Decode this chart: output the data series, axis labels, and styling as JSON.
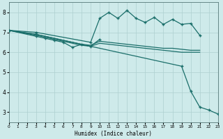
{
  "xlabel": "Humidex (Indice chaleur)",
  "bg_color": "#ceeaea",
  "grid_color": "#aed0d0",
  "line_color": "#1a6e6a",
  "xlim": [
    0,
    23
  ],
  "ylim": [
    2.5,
    8.5
  ],
  "yticks": [
    3,
    4,
    5,
    6,
    7,
    8
  ],
  "xticks": [
    0,
    1,
    2,
    3,
    4,
    5,
    6,
    7,
    8,
    9,
    10,
    11,
    12,
    13,
    14,
    15,
    16,
    17,
    18,
    19,
    20,
    21,
    22,
    23
  ],
  "line_wavy": {
    "x": [
      0,
      3,
      9,
      10,
      11,
      12,
      13,
      14,
      15,
      16,
      17,
      18,
      19,
      20,
      21
    ],
    "y": [
      7.1,
      7.0,
      6.5,
      7.7,
      8.0,
      7.7,
      8.1,
      7.7,
      7.5,
      7.75,
      7.4,
      7.65,
      7.4,
      7.45,
      6.85
    ]
  },
  "line_long_down": {
    "x": [
      0,
      3,
      19,
      20,
      21,
      22,
      23
    ],
    "y": [
      7.1,
      6.9,
      5.3,
      4.05,
      3.25,
      3.1,
      2.9
    ]
  },
  "line_medium1": {
    "x": [
      0,
      3,
      4,
      5,
      6,
      7,
      8,
      9,
      10,
      11,
      12,
      13,
      14,
      15,
      16,
      17,
      18,
      19,
      20,
      21
    ],
    "y": [
      7.1,
      6.9,
      6.8,
      6.7,
      6.6,
      6.5,
      6.4,
      6.35,
      6.55,
      6.5,
      6.45,
      6.4,
      6.35,
      6.3,
      6.25,
      6.2,
      6.2,
      6.15,
      6.1,
      6.1
    ]
  },
  "line_medium2": {
    "x": [
      0,
      3,
      4,
      5,
      6,
      7,
      8,
      9,
      10,
      11,
      12,
      13,
      14,
      15,
      16,
      17,
      18,
      19,
      20,
      21
    ],
    "y": [
      7.1,
      6.85,
      6.75,
      6.65,
      6.55,
      6.45,
      6.35,
      6.3,
      6.45,
      6.4,
      6.35,
      6.3,
      6.25,
      6.2,
      6.15,
      6.1,
      6.05,
      6.0,
      6.0,
      6.0
    ]
  },
  "line_small_wavy": {
    "x": [
      0,
      3,
      4,
      5,
      6,
      7,
      8,
      9,
      10
    ],
    "y": [
      7.1,
      6.8,
      6.7,
      6.6,
      6.5,
      6.25,
      6.4,
      6.3,
      6.65
    ]
  }
}
